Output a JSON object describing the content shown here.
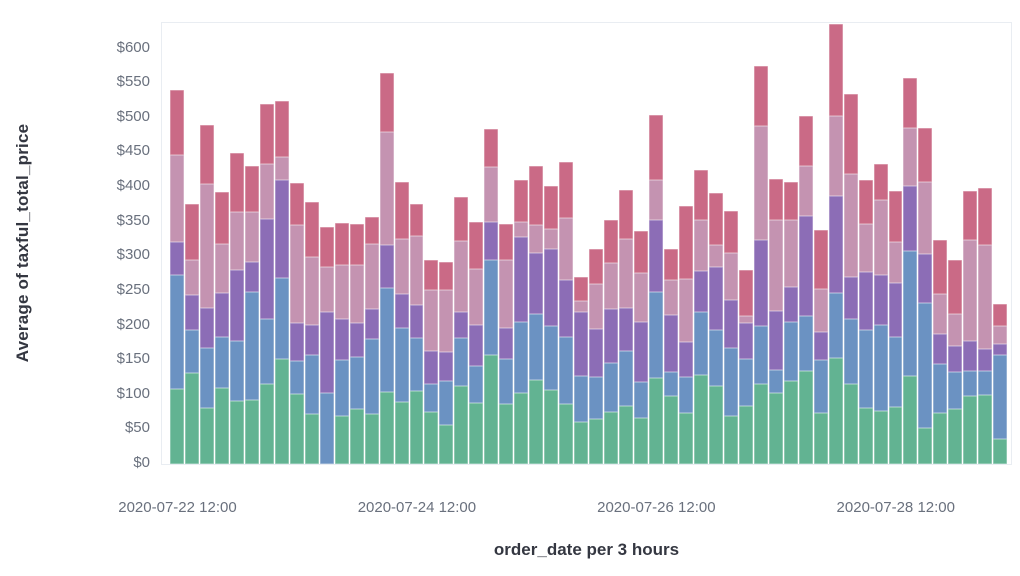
{
  "colors": {
    "background": "#ffffff",
    "plot_border": "#e9edf2",
    "axis_title_color": "#343741",
    "tick_label_color": "#69707d"
  },
  "y_axis": {
    "title": "Average of taxful_total_price",
    "ticks": [
      {
        "value": 0,
        "label": "$0"
      },
      {
        "value": 50,
        "label": "$50"
      },
      {
        "value": 100,
        "label": "$100"
      },
      {
        "value": 150,
        "label": "$150"
      },
      {
        "value": 200,
        "label": "$200"
      },
      {
        "value": 250,
        "label": "$250"
      },
      {
        "value": 300,
        "label": "$300"
      },
      {
        "value": 350,
        "label": "$350"
      },
      {
        "value": 400,
        "label": "$400"
      },
      {
        "value": 450,
        "label": "$450"
      },
      {
        "value": 500,
        "label": "$500"
      },
      {
        "value": 550,
        "label": "$550"
      },
      {
        "value": 600,
        "label": "$600"
      }
    ]
  },
  "x_axis": {
    "title": "order_date per 3 hours",
    "ticks": [
      {
        "bar_index": 1,
        "label": "2020-07-22 12:00"
      },
      {
        "bar_index": 17,
        "label": "2020-07-24 12:00"
      },
      {
        "bar_index": 33,
        "label": "2020-07-26 12:00"
      },
      {
        "bar_index": 49,
        "label": "2020-07-28 12:00"
      }
    ]
  },
  "chart_data": {
    "type": "bar",
    "stacked": true,
    "title": "",
    "xlabel": "order_date per 3 hours",
    "ylabel": "Average of taxful_total_price",
    "ylim": [
      0,
      637
    ],
    "grid": false,
    "legend": "none",
    "bar_count": 56,
    "x_tick_labels": [
      "2020-07-22 12:00",
      "2020-07-24 12:00",
      "2020-07-26 12:00",
      "2020-07-28 12:00"
    ],
    "series": [
      {
        "name": "stack-level-1-green",
        "color": "#62b392",
        "values": [
          108,
          131,
          81,
          110,
          91,
          93,
          115,
          151,
          101,
          72,
          0,
          70,
          80,
          72,
          104,
          90,
          105,
          75,
          57,
          112,
          88,
          158,
          86,
          102,
          122,
          107,
          86,
          60,
          65,
          75,
          84,
          66,
          124,
          98,
          73,
          128,
          112,
          70,
          84,
          115,
          103,
          120,
          134,
          74,
          153,
          115,
          81,
          76,
          83,
          127,
          52,
          74,
          79,
          98,
          100,
          36
        ]
      },
      {
        "name": "stack-level-2-blue",
        "color": "#6b92c2",
        "values": [
          165,
          63,
          86,
          74,
          86,
          156,
          95,
          117,
          48,
          85,
          103,
          80,
          75,
          109,
          150,
          106,
          77,
          40,
          63,
          70,
          53,
          137,
          65,
          103,
          95,
          93,
          98,
          67,
          60,
          71,
          79,
          53,
          125,
          35,
          52,
          91,
          82,
          98,
          68,
          84,
          33,
          85,
          80,
          76,
          94,
          95,
          113,
          125,
          101,
          180,
          180,
          71,
          54,
          36,
          34,
          121
        ]
      },
      {
        "name": "stack-level-3-purple",
        "color": "#8c6db6",
        "values": [
          48,
          50,
          58,
          63,
          103,
          43,
          144,
          142,
          55,
          44,
          117,
          60,
          48,
          43,
          62,
          49,
          48,
          48,
          42,
          38,
          60,
          55,
          45,
          123,
          88,
          110,
          82,
          93,
          70,
          78,
          63,
          86,
          103,
          82,
          51,
          60,
          90,
          69,
          52,
          125,
          85,
          50,
          144,
          40,
          140,
          60,
          84,
          72,
          78,
          95,
          72,
          43,
          38,
          44,
          32,
          17
        ]
      },
      {
        "name": "stack-level-4-mauve",
        "color": "#c493b1",
        "values": [
          126,
          51,
          180,
          71,
          84,
          72,
          80,
          33,
          142,
          98,
          65,
          78,
          84,
          94,
          163,
          80,
          100,
          89,
          90,
          102,
          80,
          79,
          99,
          22,
          40,
          29,
          90,
          15,
          65,
          66,
          99,
          71,
          58,
          51,
          91,
          74,
          32,
          68,
          10,
          164,
          132,
          97,
          72,
          63,
          115,
          149,
          69,
          108,
          59,
          84,
          103,
          57,
          46,
          145,
          150,
          25
        ]
      },
      {
        "name": "stack-level-5-rose",
        "color": "#ca6a86",
        "values": [
          93,
          81,
          85,
          75,
          86,
          66,
          86,
          81,
          60,
          80,
          57,
          60,
          60,
          39,
          86,
          82,
          46,
          43,
          40,
          64,
          69,
          55,
          52,
          60,
          85,
          62,
          80,
          35,
          50,
          62,
          71,
          61,
          94,
          44,
          105,
          72,
          76,
          60,
          67,
          87,
          59,
          56,
          72,
          85,
          133,
          115,
          63,
          53,
          73,
          71,
          79,
          78,
          78,
          71,
          83,
          32
        ]
      }
    ],
    "stacked_totals": [
      540,
      376,
      490,
      393,
      450,
      430,
      520,
      524,
      406,
      379,
      342,
      348,
      347,
      357,
      565,
      407,
      376,
      295,
      292,
      386,
      350,
      484,
      347,
      410,
      430,
      401,
      436,
      270,
      310,
      352,
      396,
      337,
      504,
      310,
      372,
      425,
      392,
      365,
      281,
      575,
      412,
      408,
      502,
      338,
      635,
      534,
      410,
      434,
      394,
      557,
      486,
      323,
      295,
      394,
      399,
      231
    ]
  }
}
